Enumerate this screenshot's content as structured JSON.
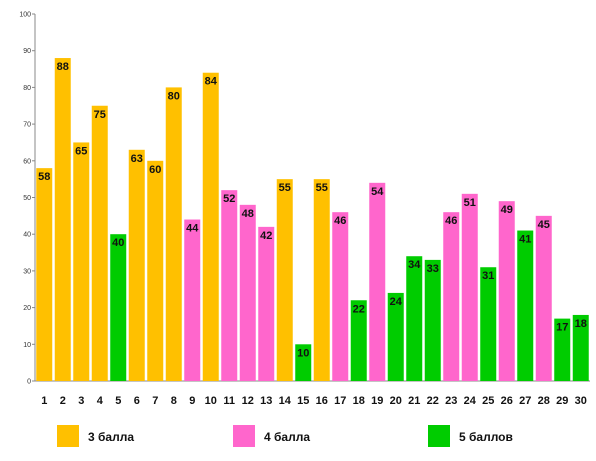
{
  "chart_data": {
    "type": "bar",
    "categories": [
      "1",
      "2",
      "3",
      "4",
      "5",
      "6",
      "7",
      "8",
      "9",
      "10",
      "11",
      "12",
      "13",
      "14",
      "15",
      "16",
      "17",
      "18",
      "19",
      "20",
      "21",
      "22",
      "23",
      "24",
      "25",
      "26",
      "27",
      "28",
      "29",
      "30"
    ],
    "values": [
      58,
      88,
      65,
      75,
      40,
      63,
      60,
      80,
      44,
      84,
      52,
      48,
      42,
      55,
      10,
      55,
      46,
      22,
      54,
      24,
      34,
      33,
      46,
      51,
      31,
      49,
      41,
      45,
      17,
      18
    ],
    "groups": [
      "g3",
      "g3",
      "g3",
      "g3",
      "g5",
      "g3",
      "g3",
      "g3",
      "g4",
      "g3",
      "g4",
      "g4",
      "g4",
      "g3",
      "g5",
      "g3",
      "g4",
      "g5",
      "g4",
      "g5",
      "g5",
      "g5",
      "g4",
      "g4",
      "g5",
      "g4",
      "g5",
      "g4",
      "g5",
      "g5"
    ],
    "series": [
      {
        "key": "g3",
        "name": "3 балла",
        "color": "#FFC000"
      },
      {
        "key": "g4",
        "name": "4 балла",
        "color": "#FF66CC"
      },
      {
        "key": "g5",
        "name": "5 баллов",
        "color": "#00CC00"
      }
    ],
    "yticks": [
      0,
      10,
      20,
      30,
      40,
      50,
      60,
      70,
      80,
      90,
      100
    ],
    "ylim": [
      0,
      100
    ],
    "grid": false,
    "legend": "bottom",
    "data_labels": true
  }
}
